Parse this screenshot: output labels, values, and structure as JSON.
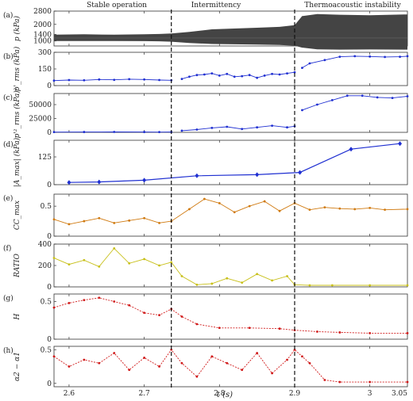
{
  "regions": [
    "Stable operation",
    "Intermittency",
    "Thermoacoustic instability"
  ],
  "xaxis": {
    "label": "t (s)",
    "range": [
      2.58,
      3.05
    ],
    "ticks": [
      2.6,
      2.7,
      2.8,
      2.9,
      3.0,
      3.05
    ],
    "tick_labels": [
      "2.6",
      "2.7",
      "2.8",
      "2.9",
      "3",
      "3.05"
    ]
  },
  "dividers": [
    2.736,
    2.9
  ],
  "chart_data": [
    {
      "type": "area",
      "panel_label": "(a)",
      "ylabel": "p (kPa)",
      "color": "#444444",
      "ylim": [
        700,
        2800
      ],
      "yticks": [
        1000,
        1400,
        2000,
        2800
      ],
      "ytick_labels": [
        "1000",
        "1400",
        "2000",
        "2800"
      ],
      "baseline": 1180,
      "envelope": {
        "t": [
          2.58,
          2.62,
          2.66,
          2.7,
          2.72,
          2.736,
          2.76,
          2.79,
          2.82,
          2.85,
          2.88,
          2.9,
          2.91,
          2.93,
          2.96,
          3.0,
          3.05
        ],
        "upper": [
          1380,
          1400,
          1380,
          1400,
          1420,
          1450,
          1550,
          1700,
          1750,
          1800,
          1850,
          1950,
          2500,
          2620,
          2580,
          2550,
          2600
        ],
        "lower": [
          1000,
          1000,
          1000,
          990,
          980,
          960,
          880,
          820,
          800,
          780,
          760,
          720,
          600,
          500,
          480,
          490,
          480
        ]
      }
    },
    {
      "type": "line",
      "panel_label": "(b)",
      "ylabel": "p'_rms (kPa)",
      "color": "#1f2fd1",
      "ylim": [
        0,
        300
      ],
      "yticks": [
        0,
        150,
        300
      ],
      "ytick_labels": [
        "0",
        "150",
        "300"
      ],
      "series": [
        {
          "t": [
            2.58,
            2.6,
            2.62,
            2.64,
            2.66,
            2.68,
            2.7,
            2.72,
            2.736
          ],
          "y": [
            45,
            50,
            48,
            55,
            52,
            58,
            55,
            50,
            48
          ]
        },
        {
          "t": [
            2.75,
            2.76,
            2.77,
            2.78,
            2.79,
            2.8,
            2.81,
            2.82,
            2.83,
            2.84,
            2.85,
            2.86,
            2.87,
            2.88,
            2.89,
            2.9
          ],
          "y": [
            60,
            80,
            95,
            100,
            110,
            90,
            105,
            80,
            85,
            95,
            70,
            90,
            105,
            100,
            110,
            120
          ]
        },
        {
          "t": [
            2.91,
            2.92,
            2.94,
            2.96,
            2.98,
            3.0,
            3.02,
            3.04,
            3.05
          ],
          "y": [
            160,
            200,
            230,
            260,
            265,
            262,
            258,
            260,
            265
          ]
        }
      ]
    },
    {
      "type": "line",
      "panel_label": "(c)",
      "ylabel": "p'²_rms (kPa)²",
      "color": "#1f2fd1",
      "ylim": [
        0,
        70000
      ],
      "yticks": [
        0,
        25000,
        50000
      ],
      "ytick_labels": [
        "0",
        "25000",
        "50000"
      ],
      "series": [
        {
          "t": [
            2.58,
            2.62,
            2.66,
            2.7,
            2.72,
            2.736
          ],
          "y": [
            500,
            600,
            700,
            600,
            500,
            600
          ]
        },
        {
          "t": [
            2.75,
            2.77,
            2.79,
            2.81,
            2.83,
            2.85,
            2.87,
            2.89,
            2.9
          ],
          "y": [
            3000,
            5000,
            8000,
            10000,
            6000,
            9000,
            12000,
            9000,
            11000
          ]
        },
        {
          "t": [
            2.91,
            2.93,
            2.95,
            2.97,
            2.99,
            3.01,
            3.03,
            3.05
          ],
          "y": [
            40000,
            50000,
            58000,
            66000,
            66000,
            63000,
            62000,
            65000
          ]
        }
      ]
    },
    {
      "type": "line",
      "panel_label": "(d)",
      "ylabel": "|A_max| (kPa)",
      "color": "#1f2fd1",
      "ylim": [
        0,
        200
      ],
      "yticks": [
        0,
        125
      ],
      "ytick_labels": [
        "0",
        "125"
      ],
      "series": [
        {
          "t": [
            2.6,
            2.64,
            2.7,
            2.77,
            2.85,
            2.907,
            2.975,
            3.04
          ],
          "y": [
            10,
            12,
            20,
            40,
            45,
            55,
            160,
            185
          ]
        }
      ]
    },
    {
      "type": "line",
      "panel_label": "(e)",
      "ylabel": "CC_max",
      "color": "#d07a10",
      "ylim": [
        0,
        0.7
      ],
      "yticks": [
        0,
        0.5
      ],
      "ytick_labels": [
        "0",
        "0.5"
      ],
      "series": [
        {
          "t": [
            2.58,
            2.6,
            2.62,
            2.64,
            2.66,
            2.68,
            2.7,
            2.72,
            2.736,
            2.76,
            2.78,
            2.8,
            2.82,
            2.84,
            2.86,
            2.88,
            2.9,
            2.92,
            2.94,
            2.96,
            2.98,
            3.0,
            3.02,
            3.05
          ],
          "y": [
            0.28,
            0.2,
            0.25,
            0.3,
            0.22,
            0.26,
            0.3,
            0.22,
            0.25,
            0.45,
            0.62,
            0.55,
            0.4,
            0.5,
            0.58,
            0.42,
            0.55,
            0.44,
            0.48,
            0.46,
            0.45,
            0.47,
            0.44,
            0.45
          ]
        }
      ]
    },
    {
      "type": "line",
      "panel_label": "(f)",
      "ylabel": "RATIO",
      "color": "#c8c01a",
      "ylim": [
        0,
        400
      ],
      "yticks": [
        0,
        200,
        400
      ],
      "ytick_labels": [
        "0",
        "200",
        "400"
      ],
      "series": [
        {
          "t": [
            2.58,
            2.6,
            2.62,
            2.64,
            2.66,
            2.68,
            2.7,
            2.72,
            2.736,
            2.75,
            2.77,
            2.79,
            2.81,
            2.83,
            2.85,
            2.87,
            2.89,
            2.9,
            2.92,
            2.95,
            3.0,
            3.05
          ],
          "y": [
            270,
            210,
            250,
            190,
            360,
            220,
            260,
            200,
            230,
            100,
            20,
            30,
            80,
            40,
            120,
            60,
            100,
            20,
            15,
            15,
            15,
            15
          ]
        }
      ]
    },
    {
      "type": "line",
      "panel_label": "(g)",
      "ylabel": "H",
      "color": "#d01818",
      "ylim": [
        0,
        0.6
      ],
      "yticks": [
        0,
        0.5
      ],
      "ytick_labels": [
        "0",
        "0.5"
      ],
      "series": [
        {
          "t": [
            2.58,
            2.6,
            2.62,
            2.64,
            2.66,
            2.68,
            2.7,
            2.72,
            2.736,
            2.75,
            2.77,
            2.8,
            2.84,
            2.88,
            2.9,
            2.93,
            2.96,
            3.0,
            3.05
          ],
          "y": [
            0.42,
            0.48,
            0.52,
            0.55,
            0.5,
            0.45,
            0.35,
            0.32,
            0.4,
            0.3,
            0.2,
            0.15,
            0.15,
            0.14,
            0.12,
            0.1,
            0.09,
            0.08,
            0.08
          ]
        }
      ]
    },
    {
      "type": "line",
      "panel_label": "(h)",
      "ylabel": "α2 − α1",
      "color": "#d01818",
      "ylim": [
        -0.05,
        0.55
      ],
      "yticks": [
        0,
        0.5
      ],
      "ytick_labels": [
        "0",
        "0.5"
      ],
      "series": [
        {
          "t": [
            2.58,
            2.6,
            2.62,
            2.64,
            2.66,
            2.68,
            2.7,
            2.72,
            2.736,
            2.75,
            2.77,
            2.79,
            2.81,
            2.83,
            2.85,
            2.87,
            2.89,
            2.9,
            2.91,
            2.92,
            2.94,
            2.96,
            3.0,
            3.05
          ],
          "y": [
            0.4,
            0.25,
            0.35,
            0.3,
            0.45,
            0.2,
            0.38,
            0.25,
            0.5,
            0.3,
            0.1,
            0.4,
            0.3,
            0.2,
            0.45,
            0.15,
            0.35,
            0.5,
            0.4,
            0.3,
            0.05,
            0.02,
            0.02,
            0.02
          ]
        }
      ]
    }
  ]
}
